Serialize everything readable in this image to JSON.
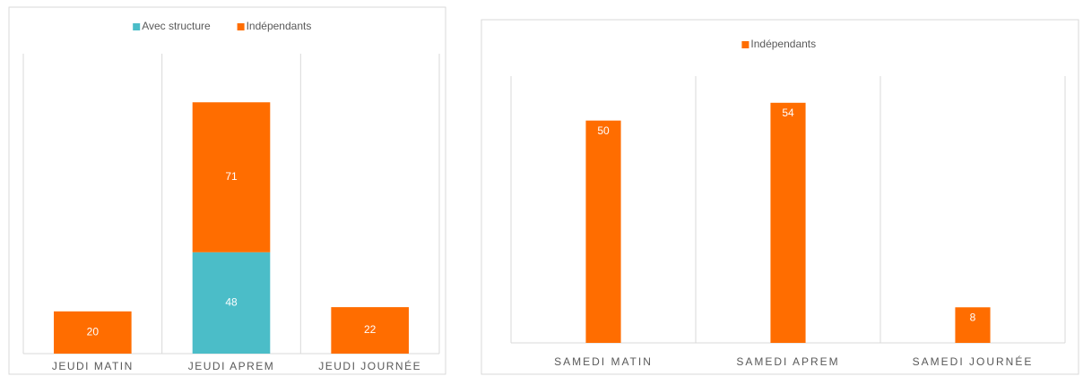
{
  "chart_data": [
    {
      "type": "bar",
      "stacked": true,
      "categories": [
        "JEUDI MATIN",
        "JEUDI APREM",
        "JEUDI JOURNÉE"
      ],
      "series": [
        {
          "name": "Avec structure",
          "color": "#4bbdc8",
          "values": [
            null,
            48,
            null
          ]
        },
        {
          "name": "Indépendants",
          "color": "#ff6d00",
          "values": [
            20,
            71,
            22
          ]
        }
      ],
      "ylim": [
        0,
        142
      ]
    },
    {
      "type": "bar",
      "stacked": false,
      "categories": [
        "SAMEDI MATIN",
        "SAMEDI APREM",
        "SAMEDI JOURNÉE"
      ],
      "series": [
        {
          "name": "Indépendants",
          "color": "#ff6d00",
          "values": [
            50,
            54,
            8
          ]
        }
      ],
      "ylim": [
        0,
        60
      ]
    }
  ]
}
